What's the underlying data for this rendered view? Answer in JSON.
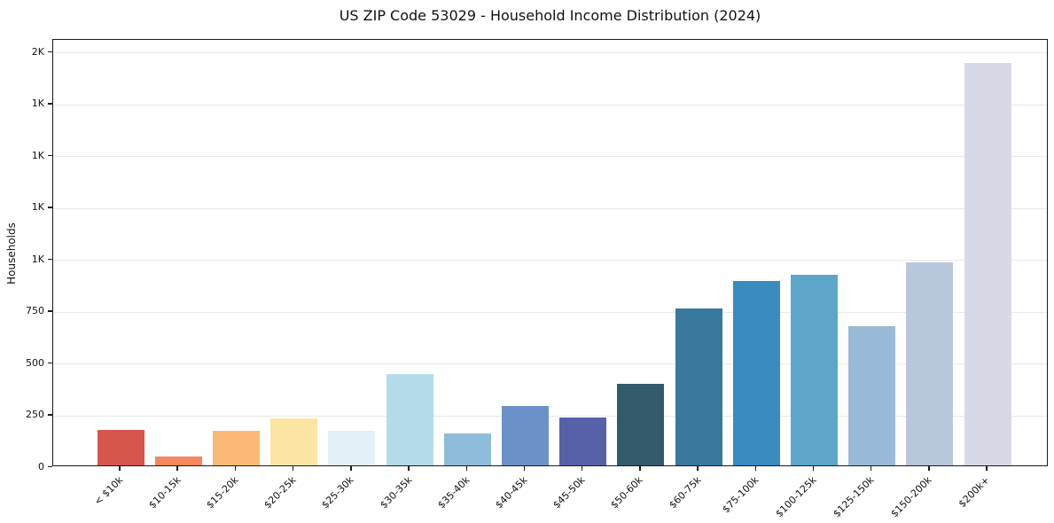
{
  "chart_data": {
    "type": "bar",
    "title": "US ZIP Code 53029 - Household Income Distribution (2024)",
    "xlabel": "",
    "ylabel": "Households",
    "categories": [
      "< $10k",
      "$10-15k",
      "$15-20k",
      "$20-25k",
      "$25-30k",
      "$30-35k",
      "$35-40k",
      "$40-45k",
      "$45-50k",
      "$50-60k",
      "$60-75k",
      "$75-100k",
      "$100-125k",
      "$125-150k",
      "$150-200k",
      "$200k+"
    ],
    "values": [
      170,
      45,
      165,
      225,
      165,
      440,
      155,
      285,
      230,
      395,
      755,
      890,
      920,
      670,
      980,
      1940
    ],
    "bar_colors": [
      "#d6564c",
      "#f4885e",
      "#fbb978",
      "#fde5a5",
      "#e3f0f6",
      "#b5dbeb",
      "#8fbcdb",
      "#6b92c8",
      "#5761a8",
      "#34596b",
      "#38799d",
      "#3a8bbf",
      "#5ea5ca",
      "#99bad6",
      "#b9c7dd",
      "#d8d9e7"
    ],
    "ylim": [
      0,
      2060
    ],
    "yticks": [
      {
        "value": 0,
        "label": "0"
      },
      {
        "value": 250,
        "label": "250"
      },
      {
        "value": 500,
        "label": "500"
      },
      {
        "value": 750,
        "label": "750"
      },
      {
        "value": 1000,
        "label": "1K"
      },
      {
        "value": 1250,
        "label": "1K"
      },
      {
        "value": 1500,
        "label": "1K"
      },
      {
        "value": 1750,
        "label": "1K"
      },
      {
        "value": 2000,
        "label": "2K"
      }
    ],
    "grid": "horizontal",
    "legend": "none",
    "colors": {
      "background": "#ffffff",
      "grid_color": "#e9e9ee",
      "spine_color": "#1a1a1a",
      "text_color": "#111111"
    }
  }
}
